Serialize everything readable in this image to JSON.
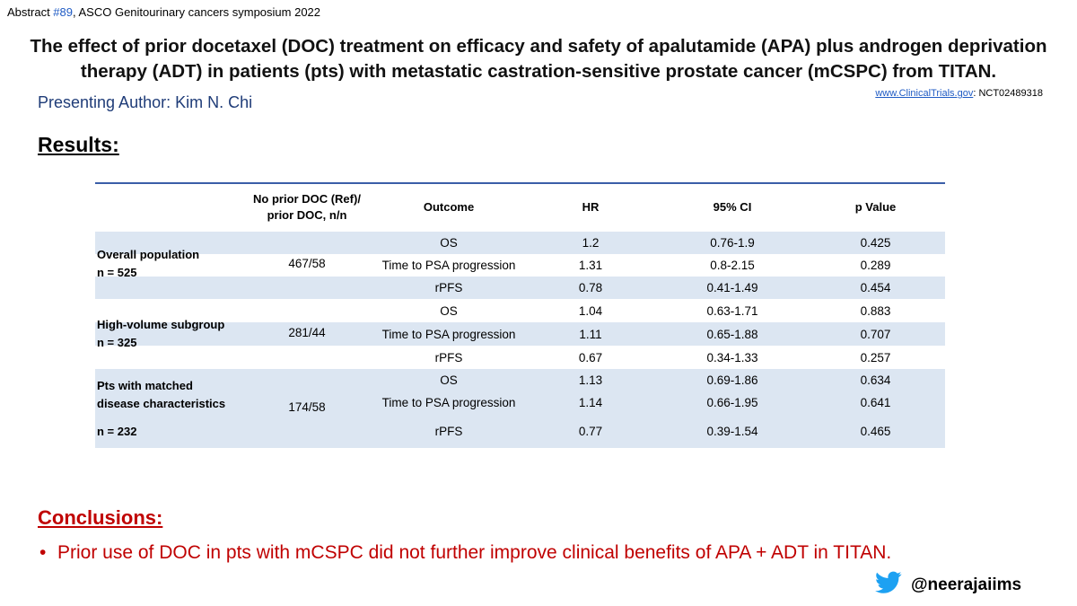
{
  "header": {
    "abstract_prefix": "Abstract ",
    "abstract_num": "#89",
    "abstract_suffix": ", ASCO Genitourinary cancers symposium 2022",
    "title_line1": "The effect of prior docetaxel (DOC) treatment on efficacy and safety of apalutamide (APA) plus androgen deprivation",
    "title_line2": "therapy (ADT) in patients (pts) with metastatic castration-sensitive prostate cancer (mCSPC) from TITAN.",
    "author": "Presenting Author: Kim N. Chi",
    "trial_link": "www.ClinicalTrials.gov",
    "trial_id": ": NCT02489318"
  },
  "results_heading": "Results:",
  "table": {
    "headers": {
      "ratio_line1": "No prior DOC (Ref)/",
      "ratio_line2": "prior DOC, n/n",
      "outcome": "Outcome",
      "hr": "HR",
      "ci": "95% CI",
      "p": "p Value"
    },
    "groups": [
      {
        "label_line1": "Overall population",
        "label_line2": "n = 525",
        "ratio": "467/58",
        "rows": [
          {
            "outcome": "OS",
            "hr": "1.2",
            "ci": "0.76-1.9",
            "p": "0.425"
          },
          {
            "outcome": "Time to PSA progression",
            "hr": "1.31",
            "ci": "0.8-2.15",
            "p": "0.289"
          },
          {
            "outcome": "rPFS",
            "hr": "0.78",
            "ci": "0.41-1.49",
            "p": "0.454"
          }
        ]
      },
      {
        "label_line1": "High-volume subgroup",
        "label_line2": "n = 325",
        "ratio": "281/44",
        "rows": [
          {
            "outcome": "OS",
            "hr": "1.04",
            "ci": "0.63-1.71",
            "p": "0.883"
          },
          {
            "outcome": "Time to PSA progression",
            "hr": "1.11",
            "ci": "0.65-1.88",
            "p": "0.707"
          },
          {
            "outcome": "rPFS",
            "hr": "0.67",
            "ci": "0.34-1.33",
            "p": "0.257"
          }
        ]
      },
      {
        "label_line1": "Pts with matched",
        "label_line2": "disease characteristics",
        "label_line3": "n = 232",
        "ratio": "174/58",
        "rows": [
          {
            "outcome": "OS",
            "hr": "1.13",
            "ci": "0.69-1.86",
            "p": "0.634"
          },
          {
            "outcome": "Time to PSA progression",
            "hr": "1.14",
            "ci": "0.66-1.95",
            "p": "0.641"
          },
          {
            "outcome": "rPFS",
            "hr": "0.77",
            "ci": "0.39-1.54",
            "p": "0.465"
          }
        ]
      }
    ]
  },
  "conclusions": {
    "heading": "Conclusions:",
    "bullet": "•",
    "text": "Prior use of DOC in pts with mCSPC did not further improve clinical benefits of APA + ADT in TITAN."
  },
  "social": {
    "icon": "twitter-bird-icon",
    "handle": "@neerajaiims",
    "color": "#1da1f2"
  }
}
